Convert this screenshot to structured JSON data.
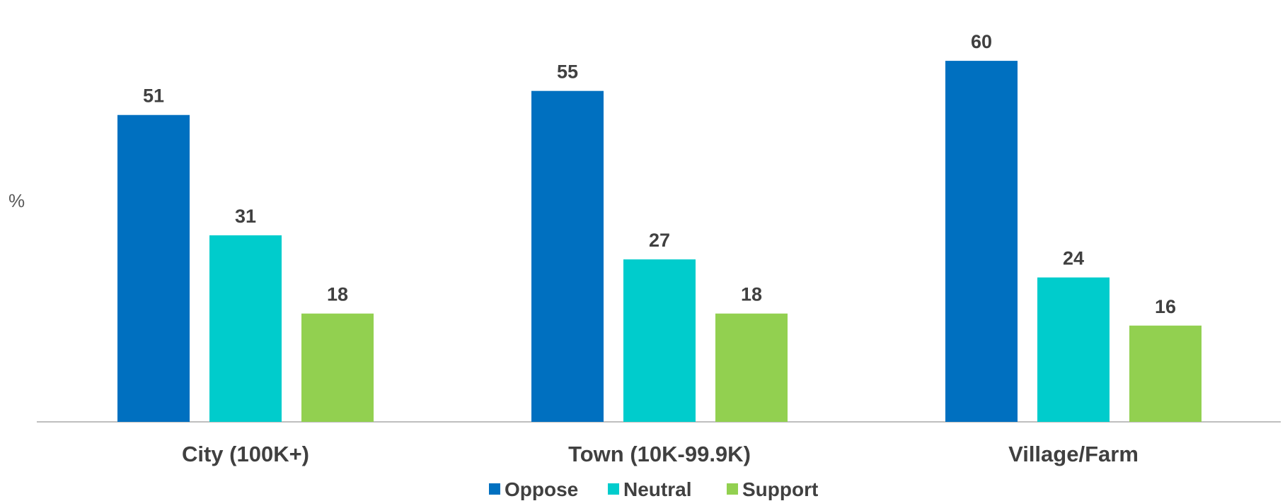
{
  "chart_data": {
    "type": "bar",
    "ylabel": "%",
    "ylim": [
      0,
      66
    ],
    "grid": false,
    "legend_position": "bottom",
    "categories": [
      "City (100K+)",
      "Town (10K-99.9K)",
      "Village/Farm"
    ],
    "series": [
      {
        "name": "Oppose",
        "color": "#0070C0",
        "values": [
          51,
          55,
          60
        ]
      },
      {
        "name": "Neutral",
        "color": "#00CCCC",
        "values": [
          31,
          27,
          24
        ]
      },
      {
        "name": "Support",
        "color": "#92D050",
        "values": [
          18,
          18,
          16
        ]
      }
    ]
  }
}
